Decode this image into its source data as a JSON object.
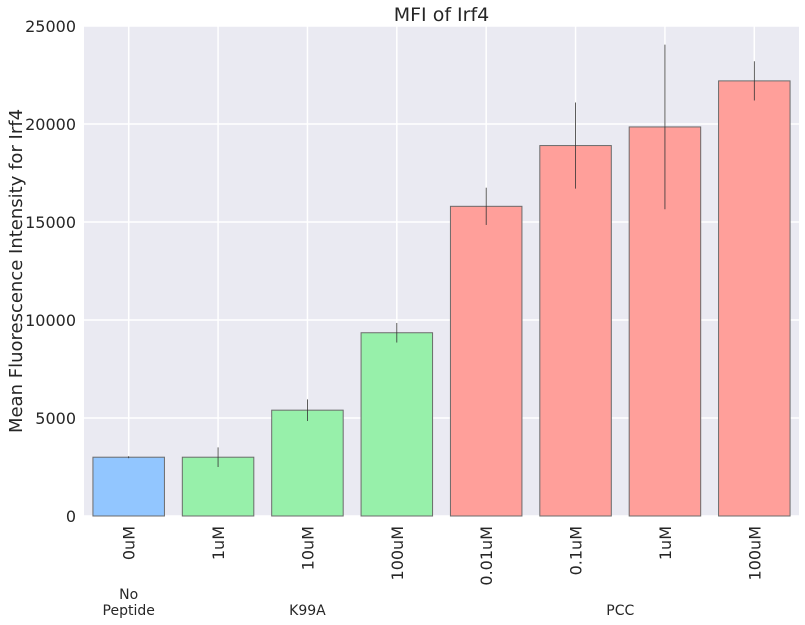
{
  "chart_data": {
    "type": "bar",
    "title": "MFI of Irf4",
    "xlabel": "",
    "ylabel": "Mean Fluorescence Intensity for Irf4",
    "ylim": [
      0,
      25000
    ],
    "yticks": [
      0,
      5000,
      10000,
      15000,
      20000,
      25000
    ],
    "grid": true,
    "categories": [
      "0uM",
      "1uM",
      "10uM",
      "100uM",
      "0.01uM",
      "0.1uM",
      "1uM",
      "100uM"
    ],
    "values": [
      3000,
      3000,
      5400,
      9350,
      15800,
      18900,
      19850,
      22200
    ],
    "errors": [
      50,
      500,
      550,
      500,
      950,
      2200,
      4200,
      1000
    ],
    "bar_groups": [
      "No Peptide",
      "K99A",
      "K99A",
      "K99A",
      "PCC",
      "PCC",
      "PCC",
      "PCC"
    ],
    "group_colors": {
      "No Peptide": "#92c6ff",
      "K99A": "#97f0aa",
      "PCC": "#ff9f9a"
    },
    "groups": [
      {
        "label_lines": [
          "No",
          "Peptide"
        ]
      },
      {
        "label_lines": [
          "K99A"
        ]
      },
      {
        "label_lines": [
          "PCC"
        ]
      }
    ]
  }
}
